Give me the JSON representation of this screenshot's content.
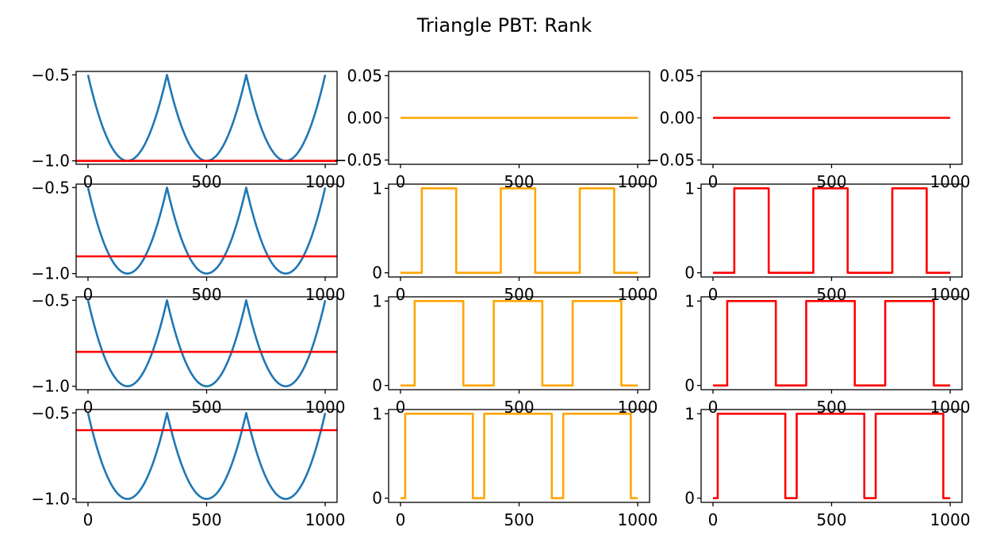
{
  "title": "Triangle PBT: Rank",
  "chart_data": [
    {
      "type": "line",
      "row": 0,
      "col": 0,
      "ylim": [
        -1.02,
        -0.48
      ],
      "yticks": [
        -0.5,
        -1.0
      ],
      "ytick_labels": [
        "−0.5",
        "−1.0"
      ],
      "xticks": [
        0,
        500,
        1000
      ],
      "xtick_labels": [
        "0",
        "500",
        "1000"
      ],
      "xlim": [
        -50,
        1050
      ],
      "grid": false,
      "series": [
        {
          "color": "#1f77b4",
          "kind": "triangle_curve",
          "x": [
            0,
            167,
            333,
            500,
            667,
            833,
            1000
          ],
          "values": [
            -0.5,
            -1.0,
            -0.5,
            -1.0,
            -0.5,
            -1.0,
            -0.5
          ]
        },
        {
          "color": "#ff0000",
          "kind": "hline",
          "values": [
            -1.0
          ]
        }
      ]
    },
    {
      "type": "line",
      "row": 0,
      "col": 1,
      "ylim": [
        -0.055,
        0.055
      ],
      "yticks": [
        0.05,
        0.0,
        -0.05
      ],
      "ytick_labels": [
        "0.05",
        "0.00",
        "−0.05"
      ],
      "xticks": [
        0,
        500,
        1000
      ],
      "xtick_labels": [
        "0",
        "500",
        "1000"
      ],
      "xlim": [
        -50,
        1050
      ],
      "grid": false,
      "series": [
        {
          "color": "#ffa500",
          "kind": "step",
          "x": [
            0,
            1000
          ],
          "values": [
            0,
            0
          ]
        }
      ]
    },
    {
      "type": "line",
      "row": 0,
      "col": 2,
      "ylim": [
        -0.055,
        0.055
      ],
      "yticks": [
        0.05,
        0.0,
        -0.05
      ],
      "ytick_labels": [
        "0.05",
        "0.00",
        "−0.05"
      ],
      "xticks": [
        0,
        500,
        1000
      ],
      "xtick_labels": [
        "0",
        "500",
        "1000"
      ],
      "xlim": [
        -50,
        1050
      ],
      "grid": false,
      "series": [
        {
          "color": "#ff0000",
          "kind": "step",
          "x": [
            0,
            1000
          ],
          "values": [
            0,
            0
          ]
        }
      ]
    },
    {
      "type": "line",
      "row": 1,
      "col": 0,
      "ylim": [
        -1.02,
        -0.48
      ],
      "yticks": [
        -0.5,
        -1.0
      ],
      "ytick_labels": [
        "−0.5",
        "−1.0"
      ],
      "xticks": [
        0,
        500,
        1000
      ],
      "xtick_labels": [
        "0",
        "500",
        "1000"
      ],
      "xlim": [
        -50,
        1050
      ],
      "grid": false,
      "series": [
        {
          "color": "#1f77b4",
          "kind": "triangle_curve",
          "x": [
            0,
            167,
            333,
            500,
            667,
            833,
            1000
          ],
          "values": [
            -0.5,
            -1.0,
            -0.5,
            -1.0,
            -0.5,
            -1.0,
            -0.5
          ]
        },
        {
          "color": "#ff0000",
          "kind": "hline",
          "values": [
            -0.9
          ]
        }
      ]
    },
    {
      "type": "line",
      "row": 1,
      "col": 1,
      "ylim": [
        -0.05,
        1.05
      ],
      "yticks": [
        1,
        0
      ],
      "ytick_labels": [
        "1",
        "0"
      ],
      "xticks": [
        0,
        500,
        1000
      ],
      "xtick_labels": [
        "0",
        "500",
        "1000"
      ],
      "xlim": [
        -50,
        1050
      ],
      "grid": false,
      "series": [
        {
          "color": "#ffa500",
          "kind": "step",
          "x": [
            0,
            90,
            90,
            235,
            235,
            423,
            423,
            568,
            568,
            756,
            756,
            901,
            901,
            1000
          ],
          "values": [
            0,
            0,
            1,
            1,
            0,
            0,
            1,
            1,
            0,
            0,
            1,
            1,
            0,
            0
          ]
        }
      ]
    },
    {
      "type": "line",
      "row": 1,
      "col": 2,
      "ylim": [
        -0.05,
        1.05
      ],
      "yticks": [
        1,
        0
      ],
      "ytick_labels": [
        "1",
        "0"
      ],
      "xticks": [
        0,
        500,
        1000
      ],
      "xtick_labels": [
        "0",
        "500",
        "1000"
      ],
      "xlim": [
        -50,
        1050
      ],
      "grid": false,
      "series": [
        {
          "color": "#ff0000",
          "kind": "step",
          "x": [
            0,
            90,
            90,
            235,
            235,
            423,
            423,
            568,
            568,
            756,
            756,
            901,
            901,
            1000
          ],
          "values": [
            0,
            0,
            1,
            1,
            0,
            0,
            1,
            1,
            0,
            0,
            1,
            1,
            0,
            0
          ]
        }
      ]
    },
    {
      "type": "line",
      "row": 2,
      "col": 0,
      "ylim": [
        -1.02,
        -0.48
      ],
      "yticks": [
        -0.5,
        -1.0
      ],
      "ytick_labels": [
        "−0.5",
        "−1.0"
      ],
      "xticks": [
        0,
        500,
        1000
      ],
      "xtick_labels": [
        "0",
        "500",
        "1000"
      ],
      "xlim": [
        -50,
        1050
      ],
      "grid": false,
      "series": [
        {
          "color": "#1f77b4",
          "kind": "triangle_curve",
          "x": [
            0,
            167,
            333,
            500,
            667,
            833,
            1000
          ],
          "values": [
            -0.5,
            -1.0,
            -0.5,
            -1.0,
            -0.5,
            -1.0,
            -0.5
          ]
        },
        {
          "color": "#ff0000",
          "kind": "hline",
          "values": [
            -0.8
          ]
        }
      ]
    },
    {
      "type": "line",
      "row": 2,
      "col": 1,
      "ylim": [
        -0.05,
        1.05
      ],
      "yticks": [
        1,
        0
      ],
      "ytick_labels": [
        "1",
        "0"
      ],
      "xticks": [
        0,
        500,
        1000
      ],
      "xtick_labels": [
        "0",
        "500",
        "1000"
      ],
      "xlim": [
        -50,
        1050
      ],
      "grid": false,
      "series": [
        {
          "color": "#ffa500",
          "kind": "step",
          "x": [
            0,
            60,
            60,
            265,
            265,
            393,
            393,
            598,
            598,
            726,
            726,
            931,
            931,
            1000
          ],
          "values": [
            0,
            0,
            1,
            1,
            0,
            0,
            1,
            1,
            0,
            0,
            1,
            1,
            0,
            0
          ]
        }
      ]
    },
    {
      "type": "line",
      "row": 2,
      "col": 2,
      "ylim": [
        -0.05,
        1.05
      ],
      "yticks": [
        1,
        0
      ],
      "ytick_labels": [
        "1",
        "0"
      ],
      "xticks": [
        0,
        500,
        1000
      ],
      "xtick_labels": [
        "0",
        "500",
        "1000"
      ],
      "xlim": [
        -50,
        1050
      ],
      "grid": false,
      "series": [
        {
          "color": "#ff0000",
          "kind": "step",
          "x": [
            0,
            60,
            60,
            265,
            265,
            393,
            393,
            598,
            598,
            726,
            726,
            931,
            931,
            1000
          ],
          "values": [
            0,
            0,
            1,
            1,
            0,
            0,
            1,
            1,
            0,
            0,
            1,
            1,
            0,
            0
          ]
        }
      ]
    },
    {
      "type": "line",
      "row": 3,
      "col": 0,
      "ylim": [
        -1.02,
        -0.48
      ],
      "yticks": [
        -0.5,
        -1.0
      ],
      "ytick_labels": [
        "−0.5",
        "−1.0"
      ],
      "xticks": [
        0,
        500,
        1000
      ],
      "xtick_labels": [
        "0",
        "500",
        "1000"
      ],
      "xlim": [
        -50,
        1050
      ],
      "grid": false,
      "series": [
        {
          "color": "#1f77b4",
          "kind": "triangle_curve",
          "x": [
            0,
            167,
            333,
            500,
            667,
            833,
            1000
          ],
          "values": [
            -0.5,
            -1.0,
            -0.5,
            -1.0,
            -0.5,
            -1.0,
            -0.5
          ]
        },
        {
          "color": "#ff0000",
          "kind": "hline",
          "values": [
            -0.6
          ]
        }
      ]
    },
    {
      "type": "line",
      "row": 3,
      "col": 1,
      "ylim": [
        -0.05,
        1.05
      ],
      "yticks": [
        1,
        0
      ],
      "ytick_labels": [
        "1",
        "0"
      ],
      "xticks": [
        0,
        500,
        1000
      ],
      "xtick_labels": [
        "0",
        "500",
        "1000"
      ],
      "xlim": [
        -50,
        1050
      ],
      "grid": false,
      "series": [
        {
          "color": "#ffa500",
          "kind": "step",
          "x": [
            0,
            20,
            20,
            305,
            305,
            353,
            353,
            638,
            638,
            686,
            686,
            971,
            971,
            1000
          ],
          "values": [
            0,
            0,
            1,
            1,
            0,
            0,
            1,
            1,
            0,
            0,
            1,
            1,
            0,
            0
          ]
        }
      ]
    },
    {
      "type": "line",
      "row": 3,
      "col": 2,
      "ylim": [
        -0.05,
        1.05
      ],
      "yticks": [
        1,
        0
      ],
      "ytick_labels": [
        "1",
        "0"
      ],
      "xticks": [
        0,
        500,
        1000
      ],
      "xtick_labels": [
        "0",
        "500",
        "1000"
      ],
      "xlim": [
        -50,
        1050
      ],
      "grid": false,
      "series": [
        {
          "color": "#ff0000",
          "kind": "step",
          "x": [
            0,
            20,
            20,
            305,
            305,
            353,
            353,
            638,
            638,
            686,
            686,
            971,
            971,
            1000
          ],
          "values": [
            0,
            0,
            1,
            1,
            0,
            0,
            1,
            1,
            0,
            0,
            1,
            1,
            0,
            0
          ]
        }
      ]
    }
  ]
}
